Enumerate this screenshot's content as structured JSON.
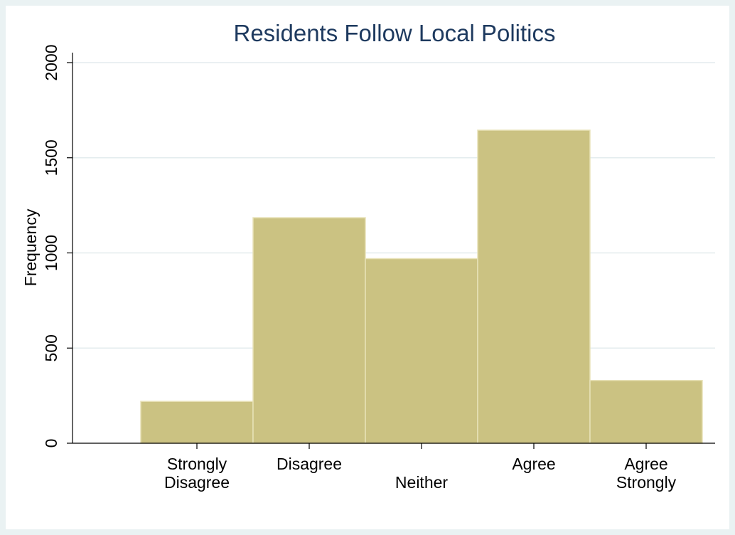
{
  "chart_data": {
    "type": "bar",
    "title": "Residents Follow Local Politics",
    "xlabel": "",
    "ylabel": "Frequency",
    "ylim": [
      0,
      2000
    ],
    "yticks": [
      0,
      500,
      1000,
      1500,
      2000
    ],
    "grid": true,
    "categories": [
      [
        "Strongly",
        "Disagree"
      ],
      [
        "Disagree"
      ],
      [
        "Neither"
      ],
      [
        "Agree"
      ],
      [
        "Agree",
        "Strongly"
      ]
    ],
    "values": [
      220,
      1185,
      970,
      1645,
      330
    ],
    "colors": {
      "bar": "#cbc282",
      "bar_edge": "#e8e2b8",
      "title": "#1e3a5f",
      "background": "#eaf2f3"
    }
  }
}
